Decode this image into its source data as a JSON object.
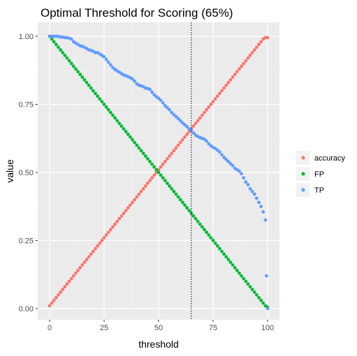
{
  "chart_data": {
    "type": "scatter",
    "title": "Optimal Threshold for Scoring (65%)",
    "xlabel": "threshold",
    "ylabel": "value",
    "xlim": [
      0,
      100
    ],
    "ylim": [
      0,
      1
    ],
    "x_ticks": [
      0,
      25,
      50,
      75,
      100
    ],
    "y_ticks": [
      0,
      0.25,
      0.5,
      0.75,
      1.0
    ],
    "x_tick_labels": [
      "0",
      "25",
      "50",
      "75",
      "100"
    ],
    "y_tick_labels": [
      "0.00",
      "0.25",
      "0.50",
      "0.75",
      "1.00"
    ],
    "grid": true,
    "panel_background": "#ebebeb",
    "legend_placement": "right",
    "vline": {
      "x": 65,
      "style": "dotted",
      "color": "#000000"
    },
    "series": [
      {
        "name": "accuracy",
        "color": "#f8766d",
        "points": [
          [
            0,
            0.01
          ],
          [
            1,
            0.02
          ],
          [
            2,
            0.03
          ],
          [
            3,
            0.04
          ],
          [
            4,
            0.05
          ],
          [
            5,
            0.06
          ],
          [
            6,
            0.07
          ],
          [
            7,
            0.08
          ],
          [
            8,
            0.09
          ],
          [
            9,
            0.1
          ],
          [
            10,
            0.11
          ],
          [
            11,
            0.12
          ],
          [
            12,
            0.13
          ],
          [
            13,
            0.14
          ],
          [
            14,
            0.15
          ],
          [
            15,
            0.16
          ],
          [
            16,
            0.17
          ],
          [
            17,
            0.18
          ],
          [
            18,
            0.19
          ],
          [
            19,
            0.2
          ],
          [
            20,
            0.21
          ],
          [
            21,
            0.22
          ],
          [
            22,
            0.23
          ],
          [
            23,
            0.24
          ],
          [
            24,
            0.25
          ],
          [
            25,
            0.26
          ],
          [
            26,
            0.27
          ],
          [
            27,
            0.28
          ],
          [
            28,
            0.29
          ],
          [
            29,
            0.3
          ],
          [
            30,
            0.31
          ],
          [
            31,
            0.32
          ],
          [
            32,
            0.33
          ],
          [
            33,
            0.34
          ],
          [
            34,
            0.35
          ],
          [
            35,
            0.36
          ],
          [
            36,
            0.37
          ],
          [
            37,
            0.38
          ],
          [
            38,
            0.39
          ],
          [
            39,
            0.4
          ],
          [
            40,
            0.41
          ],
          [
            41,
            0.42
          ],
          [
            42,
            0.43
          ],
          [
            43,
            0.44
          ],
          [
            44,
            0.45
          ],
          [
            45,
            0.46
          ],
          [
            46,
            0.47
          ],
          [
            47,
            0.48
          ],
          [
            48,
            0.49
          ],
          [
            49,
            0.5
          ],
          [
            50,
            0.51
          ],
          [
            51,
            0.52
          ],
          [
            52,
            0.53
          ],
          [
            53,
            0.54
          ],
          [
            54,
            0.55
          ],
          [
            55,
            0.56
          ],
          [
            56,
            0.57
          ],
          [
            57,
            0.58
          ],
          [
            58,
            0.59
          ],
          [
            59,
            0.6
          ],
          [
            60,
            0.61
          ],
          [
            61,
            0.62
          ],
          [
            62,
            0.63
          ],
          [
            63,
            0.64
          ],
          [
            64,
            0.65
          ],
          [
            65,
            0.66
          ],
          [
            66,
            0.67
          ],
          [
            67,
            0.68
          ],
          [
            68,
            0.69
          ],
          [
            69,
            0.7
          ],
          [
            70,
            0.71
          ],
          [
            71,
            0.72
          ],
          [
            72,
            0.73
          ],
          [
            73,
            0.74
          ],
          [
            74,
            0.75
          ],
          [
            75,
            0.76
          ],
          [
            76,
            0.77
          ],
          [
            77,
            0.78
          ],
          [
            78,
            0.79
          ],
          [
            79,
            0.8
          ],
          [
            80,
            0.81
          ],
          [
            81,
            0.82
          ],
          [
            82,
            0.83
          ],
          [
            83,
            0.84
          ],
          [
            84,
            0.85
          ],
          [
            85,
            0.86
          ],
          [
            86,
            0.87
          ],
          [
            87,
            0.88
          ],
          [
            88,
            0.89
          ],
          [
            89,
            0.9
          ],
          [
            90,
            0.91
          ],
          [
            91,
            0.92
          ],
          [
            92,
            0.93
          ],
          [
            93,
            0.94
          ],
          [
            94,
            0.95
          ],
          [
            95,
            0.96
          ],
          [
            96,
            0.97
          ],
          [
            97,
            0.98
          ],
          [
            98,
            0.99
          ],
          [
            99,
            0.995
          ],
          [
            100,
            0.995
          ]
        ]
      },
      {
        "name": "FP",
        "color": "#00ba38",
        "points": [
          [
            0,
            1.0
          ],
          [
            1,
            0.99
          ],
          [
            2,
            0.98
          ],
          [
            3,
            0.97
          ],
          [
            4,
            0.96
          ],
          [
            5,
            0.95
          ],
          [
            6,
            0.94
          ],
          [
            7,
            0.93
          ],
          [
            8,
            0.92
          ],
          [
            9,
            0.91
          ],
          [
            10,
            0.9
          ],
          [
            11,
            0.89
          ],
          [
            12,
            0.88
          ],
          [
            13,
            0.87
          ],
          [
            14,
            0.86
          ],
          [
            15,
            0.85
          ],
          [
            16,
            0.84
          ],
          [
            17,
            0.83
          ],
          [
            18,
            0.82
          ],
          [
            19,
            0.81
          ],
          [
            20,
            0.8
          ],
          [
            21,
            0.79
          ],
          [
            22,
            0.78
          ],
          [
            23,
            0.77
          ],
          [
            24,
            0.76
          ],
          [
            25,
            0.75
          ],
          [
            26,
            0.74
          ],
          [
            27,
            0.73
          ],
          [
            28,
            0.72
          ],
          [
            29,
            0.71
          ],
          [
            30,
            0.7
          ],
          [
            31,
            0.69
          ],
          [
            32,
            0.68
          ],
          [
            33,
            0.67
          ],
          [
            34,
            0.66
          ],
          [
            35,
            0.65
          ],
          [
            36,
            0.64
          ],
          [
            37,
            0.63
          ],
          [
            38,
            0.62
          ],
          [
            39,
            0.61
          ],
          [
            40,
            0.6
          ],
          [
            41,
            0.59
          ],
          [
            42,
            0.58
          ],
          [
            43,
            0.57
          ],
          [
            44,
            0.56
          ],
          [
            45,
            0.55
          ],
          [
            46,
            0.54
          ],
          [
            47,
            0.53
          ],
          [
            48,
            0.52
          ],
          [
            49,
            0.51
          ],
          [
            50,
            0.5
          ],
          [
            51,
            0.49
          ],
          [
            52,
            0.48
          ],
          [
            53,
            0.47
          ],
          [
            54,
            0.46
          ],
          [
            55,
            0.45
          ],
          [
            56,
            0.44
          ],
          [
            57,
            0.43
          ],
          [
            58,
            0.42
          ],
          [
            59,
            0.41
          ],
          [
            60,
            0.4
          ],
          [
            61,
            0.39
          ],
          [
            62,
            0.38
          ],
          [
            63,
            0.37
          ],
          [
            64,
            0.36
          ],
          [
            65,
            0.35
          ],
          [
            66,
            0.34
          ],
          [
            67,
            0.33
          ],
          [
            68,
            0.32
          ],
          [
            69,
            0.31
          ],
          [
            70,
            0.3
          ],
          [
            71,
            0.29
          ],
          [
            72,
            0.28
          ],
          [
            73,
            0.27
          ],
          [
            74,
            0.26
          ],
          [
            75,
            0.25
          ],
          [
            76,
            0.24
          ],
          [
            77,
            0.23
          ],
          [
            78,
            0.22
          ],
          [
            79,
            0.21
          ],
          [
            80,
            0.2
          ],
          [
            81,
            0.19
          ],
          [
            82,
            0.18
          ],
          [
            83,
            0.17
          ],
          [
            84,
            0.16
          ],
          [
            85,
            0.15
          ],
          [
            86,
            0.14
          ],
          [
            87,
            0.13
          ],
          [
            88,
            0.12
          ],
          [
            89,
            0.11
          ],
          [
            90,
            0.1
          ],
          [
            91,
            0.09
          ],
          [
            92,
            0.08
          ],
          [
            93,
            0.07
          ],
          [
            94,
            0.06
          ],
          [
            95,
            0.05
          ],
          [
            96,
            0.04
          ],
          [
            97,
            0.03
          ],
          [
            98,
            0.02
          ],
          [
            99,
            0.01
          ],
          [
            100,
            0.005
          ]
        ]
      },
      {
        "name": "TP",
        "color": "#619cff",
        "points": [
          [
            0,
            1.0
          ],
          [
            1,
            1.0
          ],
          [
            2,
            1.0
          ],
          [
            3,
            1.0
          ],
          [
            4,
            1.0
          ],
          [
            5,
            0.997
          ],
          [
            6,
            0.997
          ],
          [
            7,
            0.995
          ],
          [
            8,
            0.995
          ],
          [
            9,
            0.993
          ],
          [
            10,
            0.99
          ],
          [
            11,
            0.98
          ],
          [
            12,
            0.975
          ],
          [
            13,
            0.97
          ],
          [
            14,
            0.965
          ],
          [
            15,
            0.963
          ],
          [
            16,
            0.96
          ],
          [
            17,
            0.955
          ],
          [
            18,
            0.95
          ],
          [
            19,
            0.948
          ],
          [
            20,
            0.945
          ],
          [
            21,
            0.94
          ],
          [
            22,
            0.94
          ],
          [
            23,
            0.935
          ],
          [
            24,
            0.93
          ],
          [
            25,
            0.925
          ],
          [
            26,
            0.915
          ],
          [
            27,
            0.905
          ],
          [
            28,
            0.895
          ],
          [
            29,
            0.885
          ],
          [
            30,
            0.878
          ],
          [
            31,
            0.873
          ],
          [
            32,
            0.868
          ],
          [
            33,
            0.863
          ],
          [
            34,
            0.858
          ],
          [
            35,
            0.855
          ],
          [
            36,
            0.852
          ],
          [
            37,
            0.848
          ],
          [
            38,
            0.843
          ],
          [
            39,
            0.835
          ],
          [
            40,
            0.825
          ],
          [
            41,
            0.82
          ],
          [
            42,
            0.818
          ],
          [
            43,
            0.815
          ],
          [
            44,
            0.81
          ],
          [
            45,
            0.808
          ],
          [
            46,
            0.805
          ],
          [
            47,
            0.795
          ],
          [
            48,
            0.785
          ],
          [
            49,
            0.778
          ],
          [
            50,
            0.772
          ],
          [
            51,
            0.765
          ],
          [
            52,
            0.755
          ],
          [
            53,
            0.745
          ],
          [
            54,
            0.738
          ],
          [
            55,
            0.73
          ],
          [
            56,
            0.72
          ],
          [
            57,
            0.712
          ],
          [
            58,
            0.705
          ],
          [
            59,
            0.698
          ],
          [
            60,
            0.69
          ],
          [
            61,
            0.682
          ],
          [
            62,
            0.675
          ],
          [
            63,
            0.668
          ],
          [
            64,
            0.66
          ],
          [
            65,
            0.655
          ],
          [
            66,
            0.645
          ],
          [
            67,
            0.637
          ],
          [
            68,
            0.632
          ],
          [
            69,
            0.628
          ],
          [
            70,
            0.625
          ],
          [
            71,
            0.622
          ],
          [
            72,
            0.615
          ],
          [
            73,
            0.605
          ],
          [
            74,
            0.598
          ],
          [
            75,
            0.592
          ],
          [
            76,
            0.588
          ],
          [
            77,
            0.582
          ],
          [
            78,
            0.575
          ],
          [
            79,
            0.565
          ],
          [
            80,
            0.555
          ],
          [
            81,
            0.548
          ],
          [
            82,
            0.54
          ],
          [
            83,
            0.532
          ],
          [
            84,
            0.525
          ],
          [
            85,
            0.515
          ],
          [
            86,
            0.51
          ],
          [
            87,
            0.505
          ],
          [
            88,
            0.495
          ],
          [
            89,
            0.48
          ],
          [
            90,
            0.465
          ],
          [
            91,
            0.455
          ],
          [
            92,
            0.44
          ],
          [
            93,
            0.43
          ],
          [
            94,
            0.42
          ],
          [
            95,
            0.405
          ],
          [
            96,
            0.39
          ],
          [
            97,
            0.375
          ],
          [
            98,
            0.355
          ],
          [
            99,
            0.325
          ],
          [
            99.5,
            0.12
          ],
          [
            100,
            0.0
          ]
        ]
      }
    ]
  }
}
